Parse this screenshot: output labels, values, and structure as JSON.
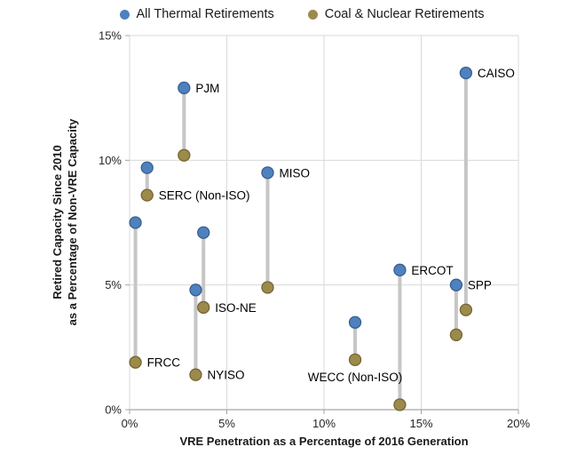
{
  "legend": {
    "items": [
      {
        "label": "All Thermal Retirements",
        "color": "#4E81BD"
      },
      {
        "label": "Coal & Nuclear Retirements",
        "color": "#9C8A4B"
      }
    ]
  },
  "chart_data": {
    "type": "scatter",
    "title": "",
    "xlabel": "VRE Penetration as a Percentage of 2016 Generation",
    "ylabel_lines": [
      "Retired Capacity Since 2010",
      "as a Percentage of Non-VRE Capacity"
    ],
    "xlim": [
      0,
      20
    ],
    "ylim": [
      0,
      15
    ],
    "x_tick_values": [
      0,
      5,
      10,
      15,
      20
    ],
    "y_tick_values": [
      0,
      5,
      10,
      15
    ],
    "x_tick_labels": [
      "0%",
      "5%",
      "10%",
      "15%",
      "20%"
    ],
    "y_tick_labels": [
      "0%",
      "5%",
      "10%",
      "15%"
    ],
    "grid": true,
    "legend_position": "top-center",
    "series_names": [
      "All Thermal Retirements",
      "Coal & Nuclear Retirements"
    ],
    "points": [
      {
        "region": "FRCC",
        "x": 0.3,
        "all_thermal": 7.5,
        "coal_nuclear": 1.9,
        "label_anchor": "coal",
        "label_side": "right"
      },
      {
        "region": "SERC (Non-ISO)",
        "x": 0.9,
        "all_thermal": 9.7,
        "coal_nuclear": 8.6,
        "label_anchor": "coal",
        "label_side": "right"
      },
      {
        "region": "PJM",
        "x": 2.8,
        "all_thermal": 12.9,
        "coal_nuclear": 10.2,
        "label_anchor": "thermal",
        "label_side": "right"
      },
      {
        "region": "NYISO",
        "x": 3.4,
        "all_thermal": 4.8,
        "coal_nuclear": 1.4,
        "label_anchor": "coal",
        "label_side": "right"
      },
      {
        "region": "ISO-NE",
        "x": 3.8,
        "all_thermal": 7.1,
        "coal_nuclear": 4.1,
        "label_anchor": "coal",
        "label_side": "right"
      },
      {
        "region": "MISO",
        "x": 7.1,
        "all_thermal": 9.5,
        "coal_nuclear": 4.9,
        "label_anchor": "thermal",
        "label_side": "right"
      },
      {
        "region": "WECC (Non-ISO)",
        "x": 11.6,
        "all_thermal": 3.5,
        "coal_nuclear": 2.0,
        "label_anchor": "coal",
        "label_side": "below"
      },
      {
        "region": "ERCOT",
        "x": 13.9,
        "all_thermal": 5.6,
        "coal_nuclear": 0.2,
        "label_anchor": "thermal",
        "label_side": "right"
      },
      {
        "region": "SPP",
        "x": 16.8,
        "all_thermal": 5.0,
        "coal_nuclear": 3.0,
        "label_anchor": "thermal",
        "label_side": "right"
      },
      {
        "region": "CAISO",
        "x": 17.3,
        "all_thermal": 13.5,
        "coal_nuclear": 4.0,
        "label_anchor": "thermal",
        "label_side": "right"
      }
    ]
  },
  "colors": {
    "thermal_fill": "#4E81BD",
    "thermal_border": "#38608F",
    "coal_nuclear_fill": "#9C8A4B",
    "coal_nuclear_border": "#746633",
    "connector": "#C6C6C6",
    "gridline": "#D9D9D9",
    "axis_line": "#A6A6A6",
    "text": "#262626"
  }
}
